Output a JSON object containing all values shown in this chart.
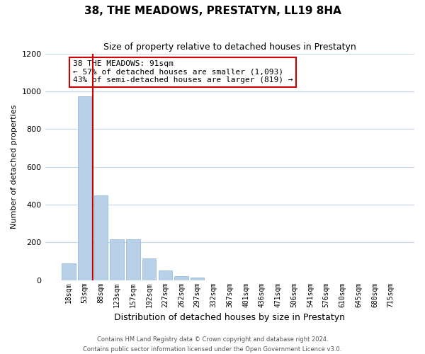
{
  "title": "38, THE MEADOWS, PRESTATYN, LL19 8HA",
  "subtitle": "Size of property relative to detached houses in Prestatyn",
  "xlabel": "Distribution of detached houses by size in Prestatyn",
  "ylabel": "Number of detached properties",
  "bin_labels": [
    "18sqm",
    "53sqm",
    "88sqm",
    "123sqm",
    "157sqm",
    "192sqm",
    "227sqm",
    "262sqm",
    "297sqm",
    "332sqm",
    "367sqm",
    "401sqm",
    "436sqm",
    "471sqm",
    "506sqm",
    "541sqm",
    "576sqm",
    "610sqm",
    "645sqm",
    "680sqm",
    "715sqm"
  ],
  "bar_values": [
    88,
    975,
    450,
    215,
    215,
    115,
    50,
    22,
    15,
    0,
    0,
    0,
    0,
    0,
    0,
    0,
    0,
    0,
    0,
    0,
    0
  ],
  "bar_color": "#b8d0e8",
  "bar_edge_color": "#8ab4d4",
  "marker_bin_index": 2,
  "marker_line_color": "#cc0000",
  "ylim": [
    0,
    1200
  ],
  "yticks": [
    0,
    200,
    400,
    600,
    800,
    1000,
    1200
  ],
  "annotation_title": "38 THE MEADOWS: 91sqm",
  "annotation_line1": "← 57% of detached houses are smaller (1,093)",
  "annotation_line2": "43% of semi-detached houses are larger (819) →",
  "annotation_box_facecolor": "#ffffff",
  "annotation_box_edgecolor": "#cc0000",
  "footer_line1": "Contains HM Land Registry data © Crown copyright and database right 2024.",
  "footer_line2": "Contains public sector information licensed under the Open Government Licence v3.0.",
  "background_color": "#ffffff",
  "grid_color": "#c8d8e8",
  "title_fontsize": 11,
  "subtitle_fontsize": 9,
  "xlabel_fontsize": 9,
  "ylabel_fontsize": 8,
  "tick_fontsize": 7,
  "annot_fontsize": 8,
  "footer_fontsize": 6
}
